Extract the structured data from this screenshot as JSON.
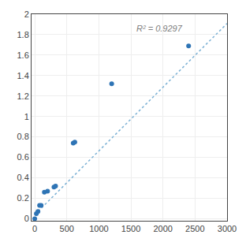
{
  "chart_data": {
    "type": "scatter",
    "series": [
      {
        "type": "scatter",
        "color": "#2e74b5",
        "marker": "circle",
        "x": [
          0,
          25,
          50,
          75,
          100,
          150,
          200,
          300,
          325,
          600,
          625,
          1200,
          2400
        ],
        "values": [
          0.0,
          0.05,
          0.07,
          0.13,
          0.13,
          0.26,
          0.27,
          0.31,
          0.32,
          0.74,
          0.75,
          1.32,
          1.69
        ]
      },
      {
        "type": "line",
        "color": "#7ab0d4",
        "line_style": "dotted",
        "x": [
          0,
          3000
        ],
        "values": [
          0.04,
          1.909
        ]
      }
    ],
    "annotations": [
      {
        "text": "R² = 0.9297",
        "x": 1560,
        "y": 1.86,
        "color": "#808080"
      }
    ],
    "xlim": [
      -50,
      3000
    ],
    "ylim": [
      -0.02,
      2.0
    ],
    "xticks": [
      0,
      500,
      1000,
      1500,
      2000,
      2500,
      3000
    ],
    "yticks": [
      0,
      0.2,
      0.4,
      0.6,
      0.8,
      1,
      1.2,
      1.4,
      1.6,
      1.8,
      2
    ],
    "grid": true
  }
}
